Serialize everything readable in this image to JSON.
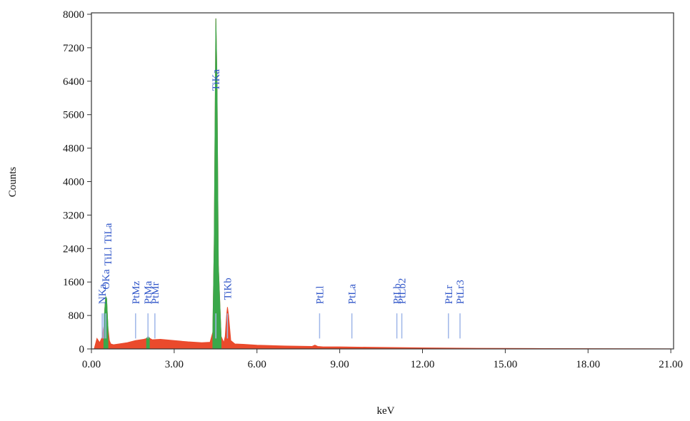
{
  "chart_data": {
    "type": "area",
    "x_label": "keV",
    "y_label": "Counts",
    "xlim": [
      0,
      21.1
    ],
    "ylim": [
      0,
      8000
    ],
    "xticks": [
      {
        "value": 0,
        "label": "0.00"
      },
      {
        "value": 3,
        "label": "3.00"
      },
      {
        "value": 6,
        "label": "6.00"
      },
      {
        "value": 9,
        "label": "9.00"
      },
      {
        "value": 12,
        "label": "12.00"
      },
      {
        "value": 15,
        "label": "15.00"
      },
      {
        "value": 18,
        "label": "18.00"
      },
      {
        "value": 21,
        "label": "21.00"
      }
    ],
    "yticks": [
      0,
      800,
      1600,
      2400,
      3200,
      4000,
      4800,
      5600,
      6400,
      7200,
      8000
    ],
    "x": [
      0.1,
      0.2,
      0.3,
      0.4,
      0.45,
      0.5,
      0.52,
      0.55,
      0.6,
      0.65,
      0.7,
      0.8,
      1.0,
      1.3,
      1.6,
      1.9,
      2.0,
      2.05,
      2.1,
      2.2,
      2.5,
      3.0,
      3.5,
      4.0,
      4.3,
      4.4,
      4.45,
      4.5,
      4.51,
      4.55,
      4.6,
      4.7,
      4.8,
      4.85,
      4.9,
      4.93,
      4.97,
      5.05,
      5.2,
      5.5,
      6.0,
      7.0,
      8.0,
      8.1,
      8.2,
      8.4,
      9.0,
      10.0,
      12.0,
      14.0,
      16.0,
      18.0,
      20.0,
      21.0
    ],
    "series": [
      {
        "color": "#ea4a2c",
        "values": [
          0,
          250,
          150,
          300,
          600,
          1100,
          1250,
          1200,
          500,
          200,
          120,
          100,
          120,
          150,
          200,
          230,
          250,
          300,
          260,
          220,
          230,
          200,
          170,
          150,
          160,
          400,
          2500,
          7000,
          7900,
          6500,
          2000,
          300,
          150,
          300,
          800,
          1000,
          800,
          200,
          120,
          110,
          90,
          70,
          60,
          90,
          60,
          50,
          50,
          40,
          25,
          15,
          10,
          6,
          4,
          3
        ]
      },
      {
        "color": "#3aa84a",
        "values": [
          null,
          null,
          null,
          null,
          600,
          1100,
          1250,
          1200,
          500,
          null,
          null,
          null,
          null,
          null,
          null,
          null,
          250,
          300,
          260,
          null,
          null,
          null,
          null,
          null,
          null,
          400,
          2500,
          7000,
          7900,
          6500,
          2000,
          300,
          null,
          null,
          null,
          null,
          null,
          null,
          null,
          null,
          null,
          null,
          null,
          null,
          null,
          null,
          null,
          null,
          null,
          null,
          null,
          null,
          null,
          null
        ]
      }
    ],
    "peak_labels": [
      {
        "label": "NKa",
        "x": 0.39
      },
      {
        "label": "OKa",
        "x": 0.52
      },
      {
        "label": "TiLl",
        "x": 0.45
      },
      {
        "label": "TiLa",
        "x": 0.45
      },
      {
        "label": "PtMz",
        "x": 1.6
      },
      {
        "label": "PtMa",
        "x": 2.05
      },
      {
        "label": "PtMr",
        "x": 2.3
      },
      {
        "label": "TiKa",
        "x": 4.51
      },
      {
        "label": "TiKb",
        "x": 4.93
      },
      {
        "label": "PtLl",
        "x": 8.27
      },
      {
        "label": "PtLa",
        "x": 9.44
      },
      {
        "label": "PtLb",
        "x": 11.07
      },
      {
        "label": "PtLb2",
        "x": 11.25
      },
      {
        "label": "PtLr",
        "x": 12.94
      },
      {
        "label": "PtLr3",
        "x": 13.36
      }
    ]
  }
}
